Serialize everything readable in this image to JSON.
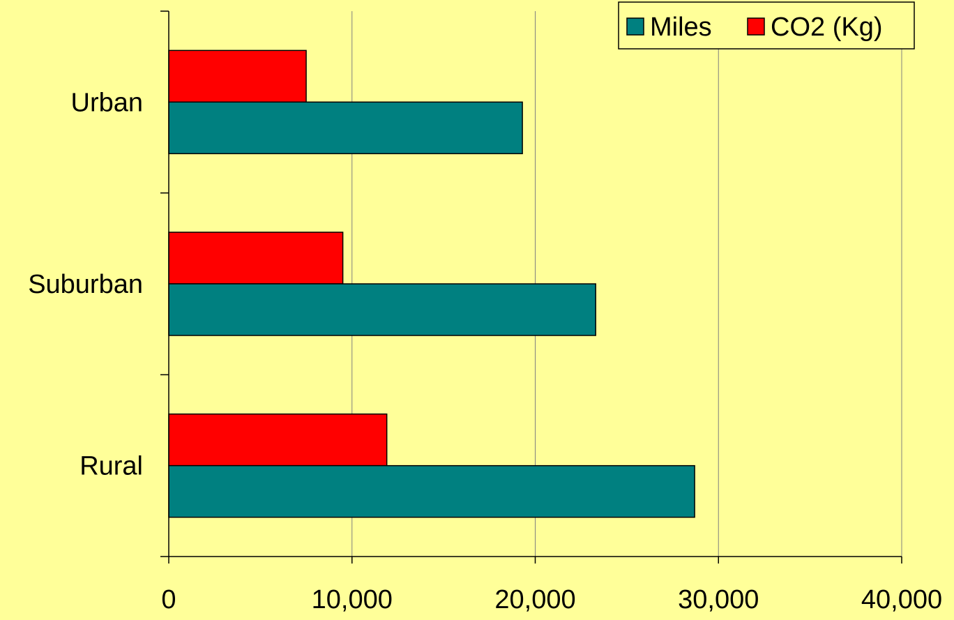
{
  "chart_data": {
    "type": "bar",
    "orientation": "horizontal",
    "categories": [
      "Urban",
      "Suburban",
      "Rural"
    ],
    "series": [
      {
        "name": "Miles",
        "values": [
          19300,
          23300,
          28700
        ],
        "color": "#008080"
      },
      {
        "name": "CO2 (Kg)",
        "values": [
          7500,
          9500,
          11900
        ],
        "color": "#FF0000"
      }
    ],
    "xlim": [
      0,
      40000
    ],
    "x_ticks": [
      0,
      10000,
      20000,
      30000,
      40000
    ],
    "x_tick_labels": [
      "0",
      "10,000",
      "20,000",
      "30,000",
      "40,000"
    ],
    "title": "",
    "xlabel": "",
    "ylabel": "",
    "grid": "vertical",
    "legend_position": "top-right",
    "background_color": "#FFFF99",
    "gridline_color": "#808080"
  }
}
